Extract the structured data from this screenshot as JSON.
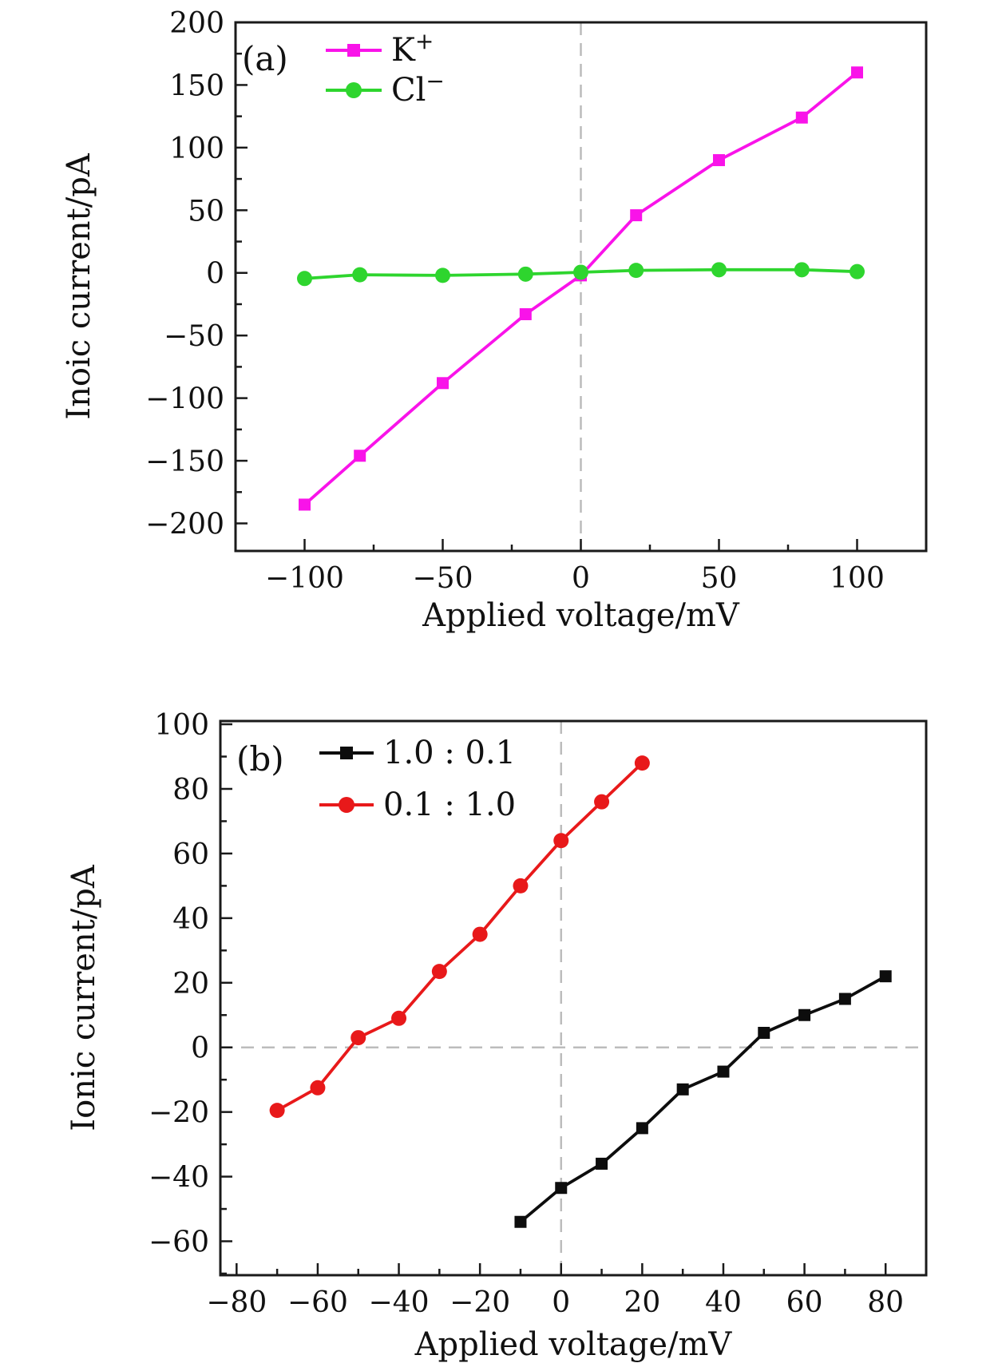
{
  "page": {
    "background": "#ffffff",
    "frame_color": "#1a1a1a",
    "guide_color": "#bcbcbc"
  },
  "chart_data": [
    {
      "type": "line",
      "panel_label": "(a)",
      "xlabel": "Applied voltage/mV",
      "ylabel": "Inoic current/pA",
      "xlim": [
        -125,
        125
      ],
      "ylim": [
        -222,
        200
      ],
      "xticks": [
        -100,
        -50,
        0,
        50,
        100
      ],
      "yticks": [
        -200,
        -150,
        -100,
        -50,
        0,
        50,
        100,
        150,
        200
      ],
      "minor_x_step": 25,
      "minor_y_step": 25,
      "guides": {
        "v": 0
      },
      "legend_position": "top-left-inside",
      "grid": false,
      "series": [
        {
          "id": "k-plus",
          "legend_base": "K",
          "legend_sup": "+",
          "color": "#f913e9",
          "marker": "square",
          "points": [
            [
              -100,
              -185
            ],
            [
              -80,
              -146
            ],
            [
              -50,
              -88
            ],
            [
              -20,
              -33
            ],
            [
              0,
              -2
            ],
            [
              20,
              46
            ],
            [
              50,
              90
            ],
            [
              80,
              124
            ],
            [
              100,
              160
            ]
          ]
        },
        {
          "id": "cl-minus",
          "legend_base": "Cl",
          "legend_sup": "−",
          "color": "#2ed52e",
          "marker": "circle",
          "points": [
            [
              -100,
              -4.5
            ],
            [
              -80,
              -1.5
            ],
            [
              -50,
              -2
            ],
            [
              -20,
              -1
            ],
            [
              0,
              0.5
            ],
            [
              20,
              2
            ],
            [
              50,
              2.5
            ],
            [
              80,
              2.5
            ],
            [
              100,
              1
            ]
          ]
        }
      ]
    },
    {
      "type": "line",
      "panel_label": "(b)",
      "xlabel": "Applied voltage/mV",
      "ylabel": "Ionic current/pA",
      "xlim": [
        -84,
        90
      ],
      "ylim": [
        -70.5,
        101
      ],
      "xticks": [
        -80,
        -60,
        -40,
        -20,
        0,
        20,
        40,
        60,
        80
      ],
      "yticks": [
        -60,
        -40,
        -20,
        0,
        20,
        40,
        60,
        80,
        100
      ],
      "minor_x_step": 10,
      "minor_y_step": 10,
      "guides": {
        "v": 0,
        "h": 0
      },
      "legend_position": "top-left-inside",
      "grid": false,
      "series": [
        {
          "id": "ratio-1p0-0p1",
          "legend_base": "1.0 : 0.1",
          "legend_sup": "",
          "color": "#0d0d0d",
          "marker": "square",
          "points": [
            [
              -10,
              -54
            ],
            [
              0,
              -43.5
            ],
            [
              10,
              -36
            ],
            [
              20,
              -25
            ],
            [
              30,
              -13
            ],
            [
              40,
              -7.5
            ],
            [
              50,
              4.5
            ],
            [
              60,
              10
            ],
            [
              70,
              15
            ],
            [
              80,
              22
            ]
          ]
        },
        {
          "id": "ratio-0p1-1p0",
          "legend_base": "0.1 : 1.0",
          "legend_sup": "",
          "color": "#e8191a",
          "marker": "circle",
          "points": [
            [
              -70,
              -19.5
            ],
            [
              -60,
              -12.5
            ],
            [
              -50,
              3
            ],
            [
              -40,
              9
            ],
            [
              -30,
              23.5
            ],
            [
              -20,
              35
            ],
            [
              -10,
              50
            ],
            [
              0,
              64
            ],
            [
              10,
              76
            ],
            [
              20,
              88
            ]
          ]
        }
      ]
    }
  ]
}
